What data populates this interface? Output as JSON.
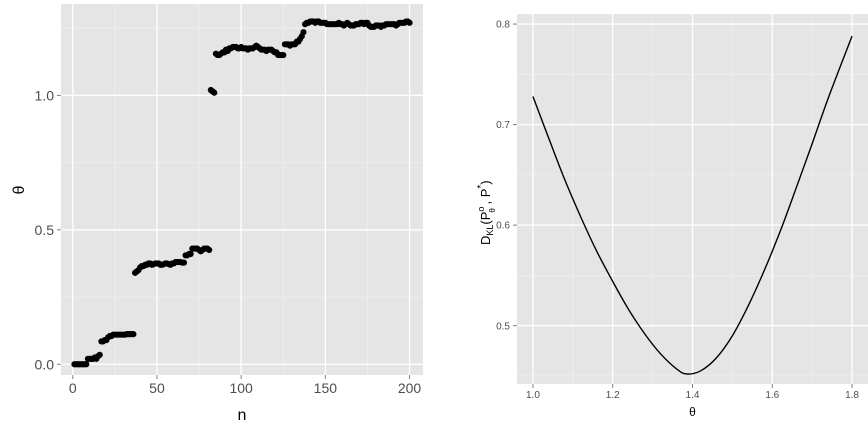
{
  "chart_data": [
    {
      "type": "scatter",
      "title": "",
      "xlabel": "n",
      "ylabel": "θ",
      "xlim": [
        -7,
        208
      ],
      "ylim": [
        -0.04,
        1.34
      ],
      "xticks": [
        0,
        50,
        100,
        150,
        200
      ],
      "xtick_labels": [
        "0",
        "50",
        "100",
        "150",
        "200"
      ],
      "yticks": [
        0.0,
        0.5,
        1.0
      ],
      "ytick_labels": [
        "0.0",
        "0.5",
        "1.0"
      ],
      "grid": true,
      "background": "#e5e5e5",
      "point_color": "#000000",
      "x": [
        1,
        2,
        3,
        4,
        5,
        6,
        7,
        8,
        9,
        10,
        11,
        12,
        13,
        14,
        15,
        16,
        17,
        18,
        19,
        20,
        21,
        22,
        23,
        24,
        25,
        26,
        27,
        28,
        29,
        30,
        31,
        32,
        33,
        34,
        35,
        36,
        37,
        38,
        39,
        40,
        41,
        42,
        43,
        44,
        45,
        46,
        47,
        48,
        49,
        50,
        51,
        52,
        53,
        54,
        55,
        56,
        57,
        58,
        59,
        60,
        61,
        62,
        63,
        64,
        65,
        66,
        67,
        68,
        69,
        70,
        71,
        72,
        73,
        74,
        75,
        76,
        77,
        78,
        79,
        80,
        81,
        82,
        83,
        84,
        85,
        86,
        87,
        88,
        89,
        90,
        91,
        92,
        93,
        94,
        95,
        96,
        97,
        98,
        99,
        100,
        101,
        102,
        103,
        104,
        105,
        106,
        107,
        108,
        109,
        110,
        111,
        112,
        113,
        114,
        115,
        116,
        117,
        118,
        119,
        120,
        121,
        122,
        123,
        124,
        125,
        126,
        127,
        128,
        129,
        130,
        131,
        132,
        133,
        134,
        135,
        136,
        137,
        138,
        139,
        140,
        141,
        142,
        143,
        144,
        145,
        146,
        147,
        148,
        149,
        150,
        151,
        152,
        153,
        154,
        155,
        156,
        157,
        158,
        159,
        160,
        161,
        162,
        163,
        164,
        165,
        166,
        167,
        168,
        169,
        170,
        171,
        172,
        173,
        174,
        175,
        176,
        177,
        178,
        179,
        180,
        181,
        182,
        183,
        184,
        185,
        186,
        187,
        188,
        189,
        190,
        191,
        192,
        193,
        194,
        195,
        196,
        197,
        198,
        199,
        200
      ],
      "y": [
        0.0,
        0.0,
        0.0,
        0.0,
        0.0,
        0.0,
        0.0,
        0.0,
        0.02,
        0.02,
        0.02,
        0.02,
        0.025,
        0.02,
        0.03,
        0.035,
        0.085,
        0.085,
        0.09,
        0.09,
        0.1,
        0.105,
        0.105,
        0.11,
        0.11,
        0.11,
        0.11,
        0.11,
        0.11,
        0.11,
        0.11,
        0.112,
        0.112,
        0.112,
        0.112,
        0.112,
        0.34,
        0.345,
        0.35,
        0.36,
        0.365,
        0.365,
        0.37,
        0.37,
        0.375,
        0.375,
        0.37,
        0.372,
        0.375,
        0.375,
        0.375,
        0.37,
        0.37,
        0.372,
        0.375,
        0.375,
        0.372,
        0.37,
        0.375,
        0.375,
        0.38,
        0.38,
        0.38,
        0.38,
        0.378,
        0.378,
        0.405,
        0.405,
        0.41,
        0.41,
        0.43,
        0.43,
        0.43,
        0.43,
        0.425,
        0.42,
        0.425,
        0.43,
        0.43,
        0.43,
        0.425,
        1.02,
        1.015,
        1.01,
        1.155,
        1.15,
        1.15,
        1.155,
        1.16,
        1.16,
        1.17,
        1.165,
        1.175,
        1.175,
        1.18,
        1.18,
        1.18,
        1.175,
        1.175,
        1.18,
        1.175,
        1.175,
        1.175,
        1.17,
        1.175,
        1.175,
        1.175,
        1.18,
        1.185,
        1.18,
        1.175,
        1.17,
        1.17,
        1.17,
        1.165,
        1.17,
        1.17,
        1.17,
        1.165,
        1.16,
        1.16,
        1.15,
        1.15,
        1.15,
        1.15,
        1.19,
        1.19,
        1.19,
        1.185,
        1.19,
        1.19,
        1.19,
        1.2,
        1.2,
        1.21,
        1.22,
        1.235,
        1.265,
        1.27,
        1.27,
        1.275,
        1.275,
        1.275,
        1.27,
        1.275,
        1.275,
        1.27,
        1.27,
        1.27,
        1.27,
        1.265,
        1.265,
        1.265,
        1.265,
        1.265,
        1.265,
        1.265,
        1.27,
        1.265,
        1.265,
        1.26,
        1.265,
        1.27,
        1.265,
        1.26,
        1.26,
        1.26,
        1.265,
        1.265,
        1.265,
        1.27,
        1.27,
        1.265,
        1.27,
        1.27,
        1.26,
        1.255,
        1.255,
        1.255,
        1.26,
        1.26,
        1.26,
        1.255,
        1.26,
        1.26,
        1.265,
        1.265,
        1.265,
        1.265,
        1.265,
        1.265,
        1.26,
        1.265,
        1.27,
        1.27,
        1.27,
        1.27,
        1.275,
        1.275,
        1.27
      ]
    },
    {
      "type": "line",
      "title": "",
      "xlabel": "θ",
      "ylabel": "D",
      "ylabel_sub": "KL",
      "ylabel_open": "(P",
      "ylabel_sup": "o",
      "ylabel_sub2": "θ",
      "ylabel_close": " , P",
      "ylabel_star": "*",
      "ylabel_end": ")",
      "xlim": [
        0.96,
        1.84
      ],
      "ylim": [
        0.442,
        0.81
      ],
      "xticks": [
        1.0,
        1.2,
        1.4,
        1.6,
        1.8
      ],
      "xtick_labels": [
        "1.0",
        "1.2",
        "1.4",
        "1.6",
        "1.8"
      ],
      "yticks": [
        0.5,
        0.6,
        0.7,
        0.8
      ],
      "ytick_labels": [
        "0.5",
        "0.6",
        "0.7",
        "0.8"
      ],
      "grid": true,
      "background": "#e5e5e5",
      "line_color": "#000000",
      "x": [
        1.0,
        1.04,
        1.08,
        1.12,
        1.16,
        1.2,
        1.24,
        1.28,
        1.32,
        1.36,
        1.385,
        1.42,
        1.46,
        1.5,
        1.54,
        1.58,
        1.62,
        1.66,
        1.7,
        1.74,
        1.8
      ],
      "y": [
        0.728,
        0.686,
        0.645,
        0.608,
        0.574,
        0.544,
        0.516,
        0.492,
        0.472,
        0.457,
        0.452,
        0.455,
        0.468,
        0.49,
        0.52,
        0.555,
        0.594,
        0.637,
        0.681,
        0.726,
        0.788
      ]
    }
  ]
}
